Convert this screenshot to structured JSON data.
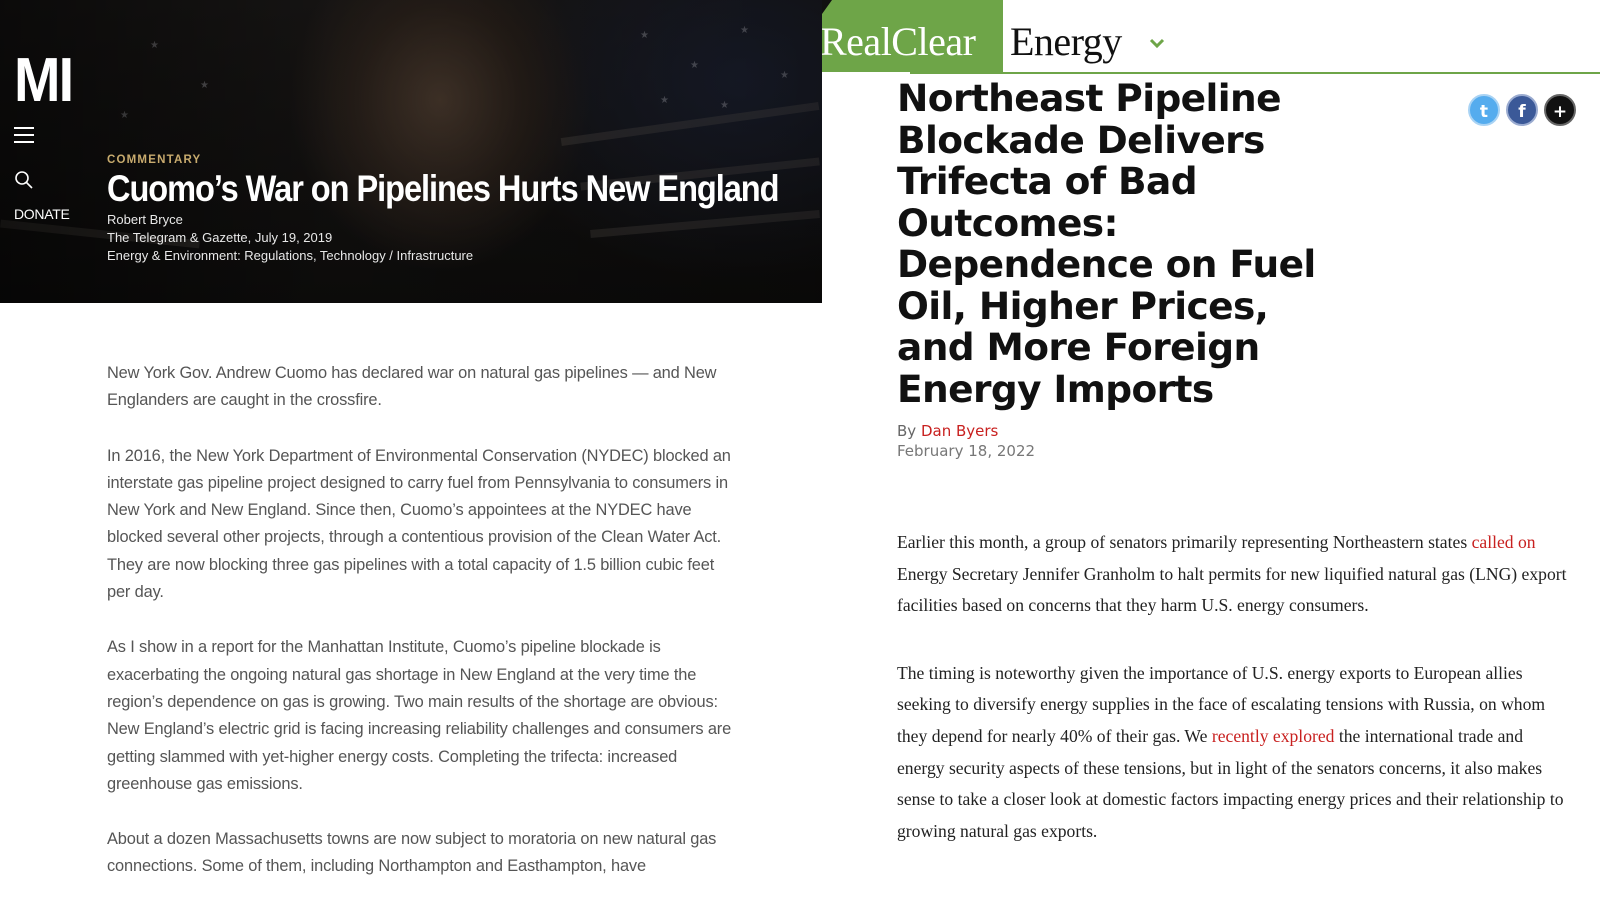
{
  "mi": {
    "logo": "MI",
    "donate": "DONATE",
    "kicker": "COMMENTARY",
    "title": "Cuomo’s War on Pipelines Hurts New England",
    "author": "Robert Bryce",
    "source": "The Telegram & Gazette, July 19, 2019",
    "topics": "Energy & Environment: Regulations, Technology / Infrastructure",
    "paragraphs": [
      "New York Gov. Andrew Cuomo has declared war on natural gas pipelines — and New Englanders are caught in the crossfire.",
      "In 2016, the New York Department of Environmental Conservation (NYDEC) blocked an interstate gas pipeline project designed to carry fuel from Pennsylvania to consumers in New York and New England. Since then, Cuomo’s appointees at the NYDEC have blocked several other projects, through a contentious provision of the Clean Water Act. They are now blocking three gas pipelines with a total capacity of 1.5 billion cubic feet per day.",
      "As I show in a report for the Manhattan Institute, Cuomo’s pipeline blockade is exacerbating the ongoing natural gas shortage in New England at the very time the region’s dependence on gas is growing. Two main results of the shortage are obvious: New England’s electric grid is facing increasing reliability challenges and consumers are getting slammed with yet-higher energy costs. Completing the trifecta: increased greenhouse gas emissions.",
      "About a dozen Massachusetts towns are now subject to moratoria on new natural gas connections. Some of them, including Northampton and Easthampton, have"
    ]
  },
  "rc": {
    "logo_real": "RealClear",
    "logo_energy": "Energy",
    "headline": "Northeast Pipeline Blockade Delivers Trifecta of Bad Outcomes: Dependence on Fuel Oil, Higher Prices, and More Foreign Energy Imports",
    "share": {
      "twitter": "t",
      "facebook": "f",
      "more": "+"
    },
    "by_label": "By",
    "author": "Dan Byers",
    "date": "February 18, 2022",
    "p1": {
      "before": "Earlier this month, a group of senators primarily representing Northeastern states ",
      "link": "called on",
      "after": " Energy Secretary Jennifer Granholm to halt permits for new liquified natural gas (LNG) export facilities based on concerns that they harm U.S. energy consumers."
    },
    "p2": {
      "before": "The timing is noteworthy given the importance of U.S. energy exports to European allies seeking to diversify energy supplies in the face of escalating tensions with Russia, on whom they depend for nearly 40% of their gas. We ",
      "link": "recently explored",
      "after": " the international trade and energy security aspects of these tensions, but in light of the senators concerns, it also makes sense to take a closer look at domestic factors impacting energy prices and their relationship to growing natural gas exports."
    },
    "colors": {
      "green": "#6ea548",
      "link": "#c8201f"
    }
  }
}
